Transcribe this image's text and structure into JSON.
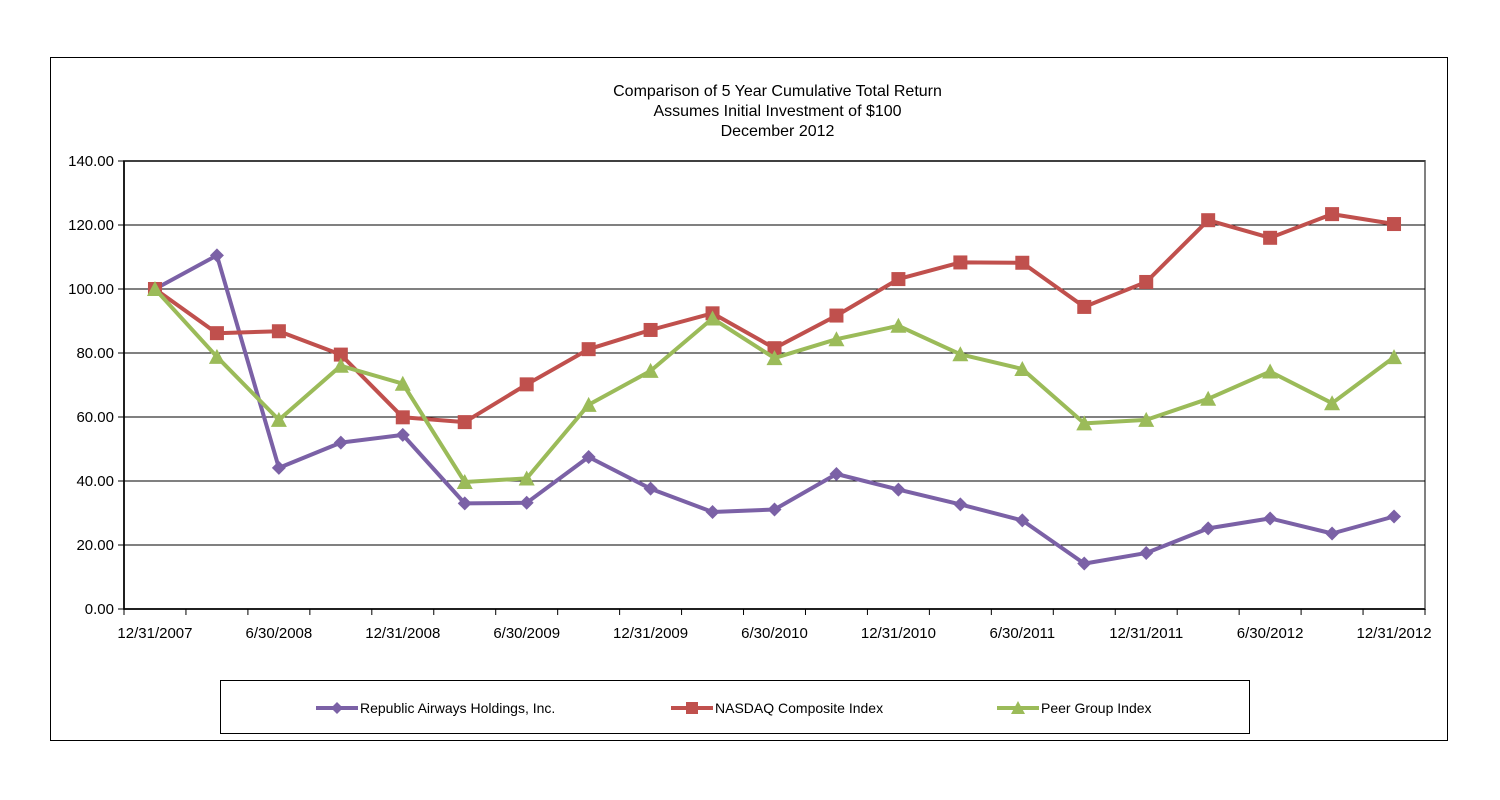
{
  "chart_data": {
    "type": "line",
    "title": "Comparison of 5 Year Cumulative Total Return",
    "subtitle_lines": [
      "Assumes Initial Investment of $100",
      "December 2012"
    ],
    "xlabel": "",
    "ylabel": "",
    "ylim": [
      0,
      140
    ],
    "yticks": [
      "0.00",
      "20.00",
      "40.00",
      "60.00",
      "80.00",
      "100.00",
      "120.00",
      "140.00"
    ],
    "x": [
      "12/31/2007",
      "3/31/2008",
      "6/30/2008",
      "9/30/2008",
      "12/31/2008",
      "3/31/2009",
      "6/30/2009",
      "9/30/2009",
      "12/31/2009",
      "3/31/2010",
      "6/30/2010",
      "9/30/2010",
      "12/31/2010",
      "3/31/2011",
      "6/30/2011",
      "9/30/2011",
      "12/31/2011",
      "3/31/2012",
      "6/30/2012",
      "9/30/2012",
      "12/31/2012"
    ],
    "xtick_labels": [
      "12/31/2007",
      "",
      "6/30/2008",
      "",
      "12/31/2008",
      "",
      "6/30/2009",
      "",
      "12/31/2009",
      "",
      "6/30/2010",
      "",
      "12/31/2010",
      "",
      "6/30/2011",
      "",
      "12/31/2011",
      "",
      "6/30/2012",
      "",
      "12/31/2012"
    ],
    "grid": true,
    "legend_position": "bottom",
    "series": [
      {
        "name": "Republic Airways Holdings, Inc.",
        "color": "#7b61a6",
        "marker": "diamond",
        "values": [
          100,
          110.5,
          44.1,
          52.0,
          54.4,
          33.0,
          33.2,
          47.5,
          37.6,
          30.3,
          31.1,
          42.2,
          37.3,
          32.7,
          27.7,
          14.2,
          17.5,
          25.2,
          28.3,
          23.6,
          28.9
        ]
      },
      {
        "name": "NASDAQ Composite Index",
        "color": "#c0504d",
        "marker": "square",
        "values": [
          100,
          86.2,
          86.8,
          79.5,
          59.9,
          58.4,
          70.2,
          81.2,
          87.2,
          92.4,
          81.5,
          91.7,
          103.1,
          108.3,
          108.2,
          94.4,
          102.2,
          121.5,
          116.0,
          123.4,
          120.3
        ]
      },
      {
        "name": "Peer Group Index",
        "color": "#9bbb59",
        "marker": "triangle",
        "values": [
          100,
          78.8,
          59.1,
          76.0,
          70.4,
          39.7,
          40.8,
          63.8,
          74.4,
          90.8,
          78.4,
          84.3,
          88.5,
          79.6,
          75.0,
          58.0,
          59.1,
          65.7,
          74.2,
          64.3,
          78.7
        ]
      }
    ]
  }
}
